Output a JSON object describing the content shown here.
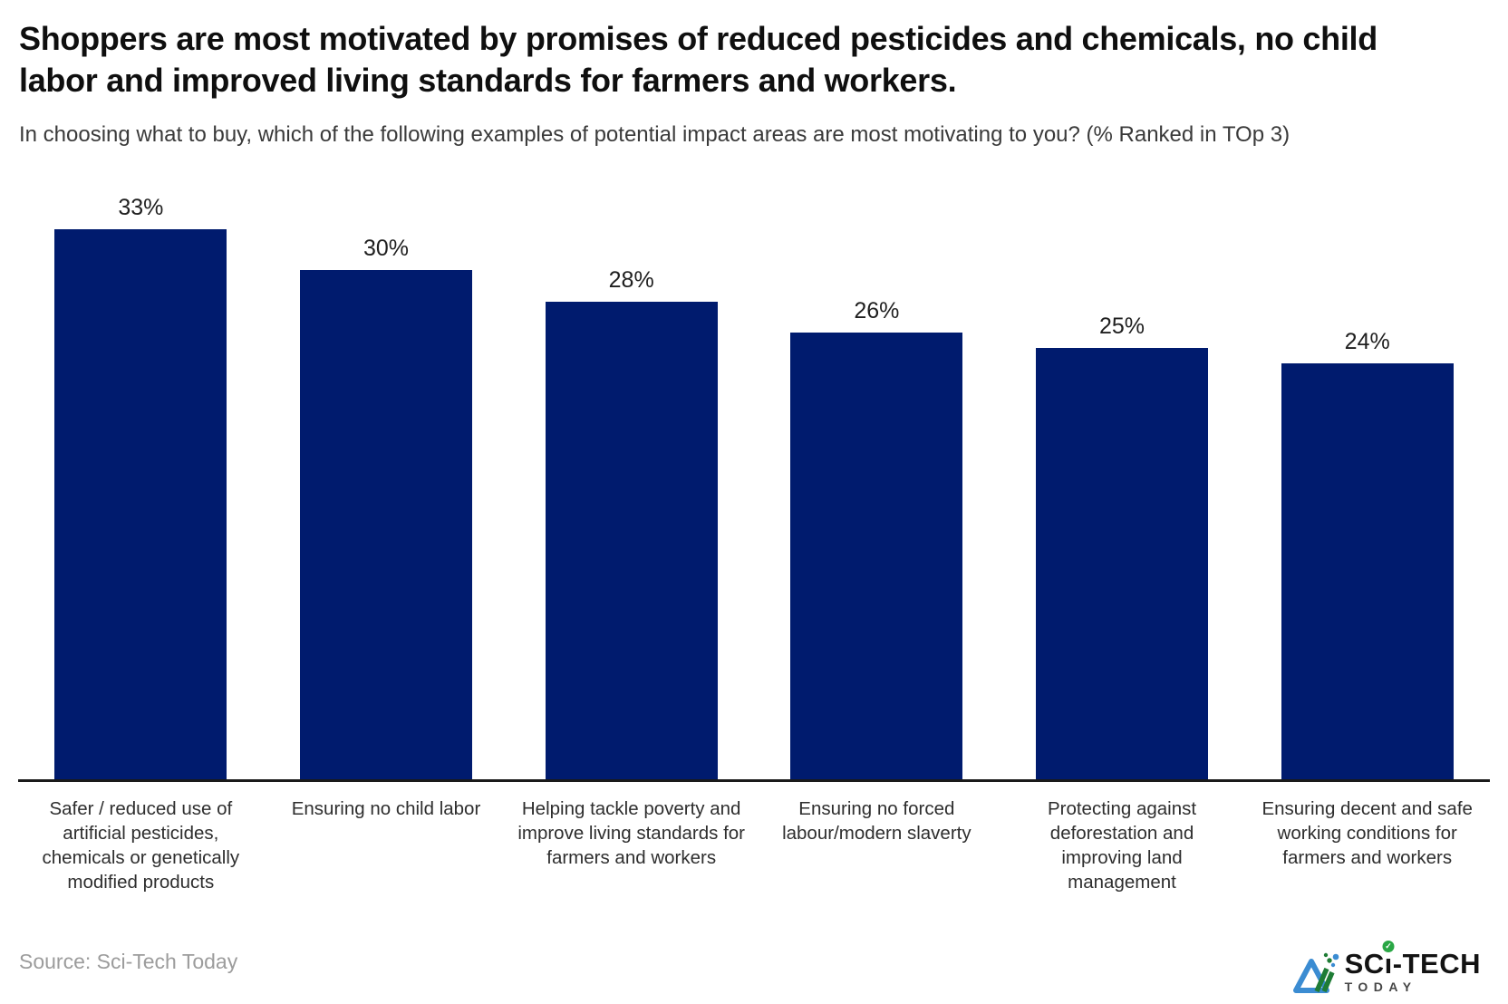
{
  "chart_data": {
    "type": "bar",
    "title": "Shoppers are most motivated by promises of reduced pesticides and chemicals, no child labor and improved living standards for farmers and workers.",
    "subtitle": "In choosing what to buy, which of the following examples of potential impact areas are most motivating to you? (% Ranked in TOp 3)",
    "categories": [
      "Safer / reduced use of artificial pesticides, chemicals or genetically modified products",
      "Ensuring no child labor",
      "Helping tackle poverty and improve living standards for farmers and workers",
      "Ensuring no forced labour/modern slaverty",
      "Protecting against deforestation and improving land management",
      "Ensuring decent and safe working conditions for farmers and workers"
    ],
    "values": [
      33,
      30,
      28,
      26,
      25,
      24
    ],
    "value_labels": [
      "33%",
      "30%",
      "28%",
      "26%",
      "25%",
      "24%"
    ],
    "xlabel": "",
    "ylabel": "",
    "ylim": [
      0,
      33
    ],
    "grid": false,
    "legend": false,
    "value_label_position": "above",
    "bar_color": "#001B6E",
    "axis_line_color": "#1A1A1A",
    "value_label_color": "#1F1F1F",
    "category_label_color": "#2E2E2E"
  },
  "footer": {
    "source": "Source: Sci-Tech Today",
    "logo": {
      "name": "Sci-Tech Today",
      "text_top_pre": "SC",
      "text_top_i": "ı",
      "text_top_post": "-TECH",
      "check_glyph": "✓",
      "text_bottom": "TODAY",
      "colors": {
        "blue": "#3B8CD2",
        "green": "#1E7C35",
        "badge_green": "#2AA745",
        "text_top": "#131313",
        "text_bottom": "#464646"
      }
    }
  }
}
